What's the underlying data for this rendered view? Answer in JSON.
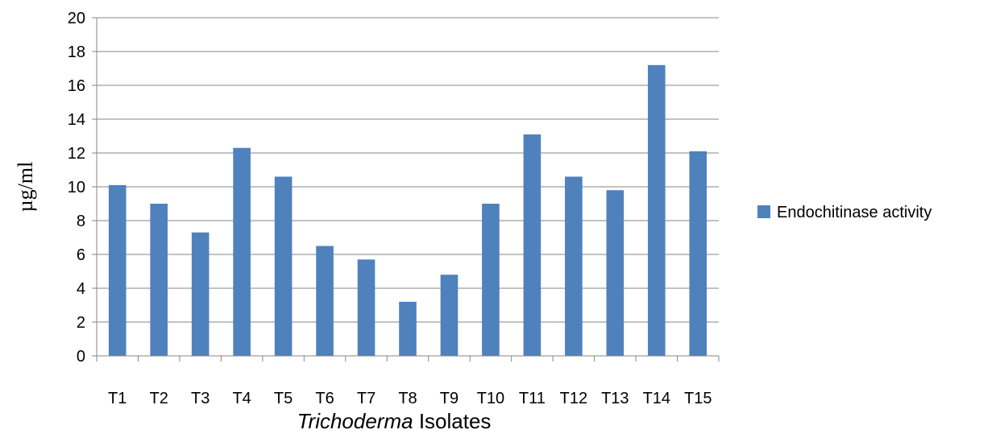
{
  "chart_data": {
    "type": "bar",
    "categories": [
      "T1",
      "T2",
      "T3",
      "T4",
      "T5",
      "T6",
      "T7",
      "T8",
      "T9",
      "T10",
      "T11",
      "T12",
      "T13",
      "T14",
      "T15"
    ],
    "series": [
      {
        "name": "Endochitinase activity",
        "color": "#4f81bd",
        "values": [
          10.1,
          9.0,
          7.3,
          12.3,
          10.6,
          6.5,
          5.7,
          3.2,
          4.8,
          9.0,
          13.1,
          10.6,
          9.8,
          17.2,
          12.1
        ]
      }
    ],
    "xlabel_italic": "Trichoderma",
    "xlabel_rest": " Isolates",
    "ylabel": "µg/ml",
    "ylim": [
      0,
      20
    ],
    "yticks": [
      0,
      2,
      4,
      6,
      8,
      10,
      12,
      14,
      16,
      18,
      20
    ],
    "grid": true,
    "legend_position": "right"
  }
}
